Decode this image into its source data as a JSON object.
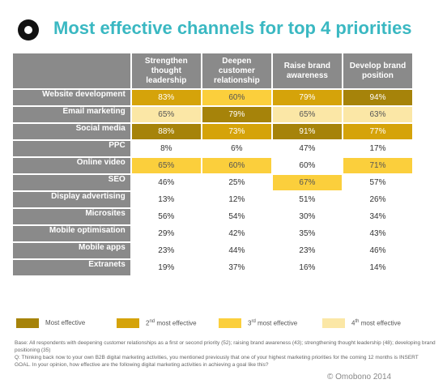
{
  "header": {
    "title": "Most effective channels for top 4 priorities"
  },
  "chart_data": {
    "type": "table",
    "title": "Most effective channels for top 4 priorities",
    "columns": [
      "Strengthen thought leadership",
      "Deepen customer relationship",
      "Raise brand awareness",
      "Develop brand position"
    ],
    "column_lines": [
      [
        "Strengthen",
        "thought",
        "leadership"
      ],
      [
        "Deepen",
        "customer",
        "relationship"
      ],
      [
        "Raise brand",
        "awareness"
      ],
      [
        "Develop brand",
        "position"
      ]
    ],
    "rows": [
      {
        "channel": "Website development",
        "values": [
          "83%",
          "60%",
          "79%",
          "94%"
        ],
        "ranks": [
          2,
          3,
          2,
          1
        ]
      },
      {
        "channel": "Email marketing",
        "values": [
          "65%",
          "79%",
          "65%",
          "63%"
        ],
        "ranks": [
          4,
          1,
          4,
          4
        ]
      },
      {
        "channel": "Social media",
        "values": [
          "88%",
          "73%",
          "91%",
          "77%"
        ],
        "ranks": [
          1,
          2,
          1,
          2
        ]
      },
      {
        "channel": "PPC",
        "values": [
          "8%",
          "6%",
          "47%",
          "17%"
        ],
        "ranks": [
          0,
          0,
          0,
          0
        ]
      },
      {
        "channel": "Online video",
        "values": [
          "65%",
          "60%",
          "60%",
          "71%"
        ],
        "ranks": [
          3,
          3,
          0,
          3
        ]
      },
      {
        "channel": "SEO",
        "values": [
          "46%",
          "25%",
          "67%",
          "57%"
        ],
        "ranks": [
          0,
          0,
          3,
          0
        ]
      },
      {
        "channel": "Display advertising",
        "values": [
          "13%",
          "12%",
          "51%",
          "26%"
        ],
        "ranks": [
          0,
          0,
          0,
          0
        ]
      },
      {
        "channel": "Microsites",
        "values": [
          "56%",
          "54%",
          "30%",
          "34%"
        ],
        "ranks": [
          0,
          0,
          0,
          0
        ]
      },
      {
        "channel": "Mobile optimisation",
        "values": [
          "29%",
          "42%",
          "35%",
          "43%"
        ],
        "ranks": [
          0,
          0,
          0,
          0
        ]
      },
      {
        "channel": "Mobile apps",
        "values": [
          "23%",
          "44%",
          "23%",
          "46%"
        ],
        "ranks": [
          0,
          0,
          0,
          0
        ]
      },
      {
        "channel": "Extranets",
        "values": [
          "19%",
          "37%",
          "16%",
          "14%"
        ],
        "ranks": [
          0,
          0,
          0,
          0
        ]
      }
    ],
    "legend": [
      {
        "label": "Most effective",
        "color": "#a6830a"
      },
      {
        "label": "2nd most effective",
        "num": "2",
        "sup": "nd",
        "rest": " most effective",
        "color": "#d5a30a"
      },
      {
        "label": "3rd most effective",
        "num": "3",
        "sup": "rd",
        "rest": " most effective",
        "color": "#fbcf3c"
      },
      {
        "label": "4th most effective",
        "num": "4",
        "sup": "th",
        "rest": " most effective",
        "color": "#fbe7a6"
      }
    ]
  },
  "notes": {
    "base": "Base: All respondents with deepening customer relationships as a first or second priority (52); raising brand awareness (43); strengthening thought leadership (48); developing brand positioning (35)",
    "question": "Q: Thinking back now to your own B2B digital marketing activities, you mentioned previously that one of your highest marketing priorities for the coming 12 months is INSERT GOAL. In your opinion, how effective are the following digital marketing activities in achieving a goal like this?"
  },
  "copyright": "© Omobono 2014"
}
